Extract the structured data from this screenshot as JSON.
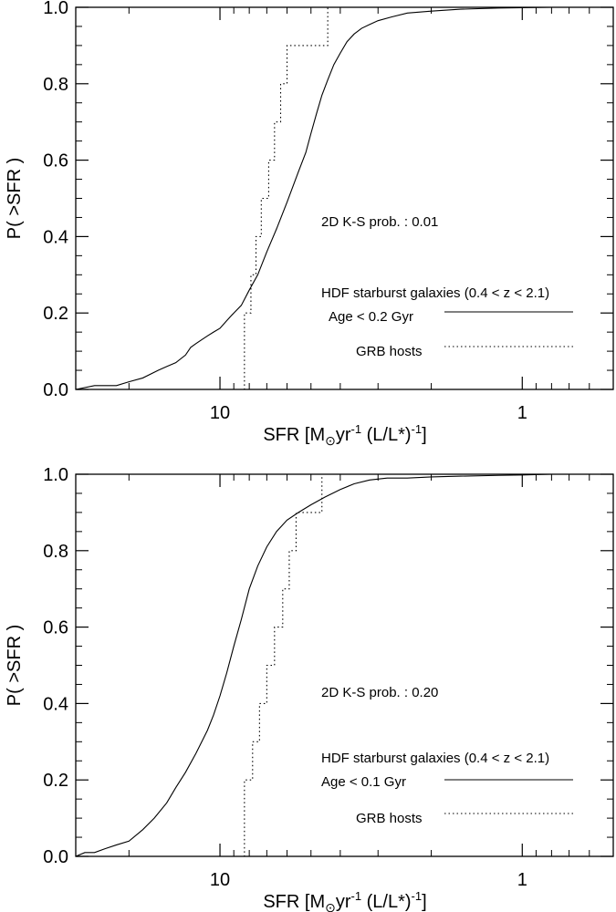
{
  "chart_data": [
    {
      "type": "line",
      "xscale": "log",
      "xaxis_reversed": true,
      "xlim": [
        30,
        0.5
      ],
      "ylim": [
        0,
        1.0
      ],
      "xlabel_main": "SFR [M",
      "xlabel_sub": "⊙",
      "xlabel_mid": "yr",
      "xlabel_sup1": "-1",
      "xlabel_tail": "  (L/L*)",
      "xlabel_sup2": "-1",
      "xlabel_close": "]",
      "ylabel": "P( >SFR )",
      "xtick_labels": [
        "10",
        "1"
      ],
      "xtick_values": [
        10,
        1
      ],
      "ytick_labels": [
        "0.0",
        "0.2",
        "0.4",
        "0.6",
        "0.8",
        "1.0"
      ],
      "ytick_values": [
        0.0,
        0.2,
        0.4,
        0.6,
        0.8,
        1.0
      ],
      "ks_text": "2D K-S prob. : 0.01",
      "legend_title": "HDF starburst galaxies (0.4 < z < 2.1)",
      "series": [
        {
          "name": "Age < 0.2 Gyr",
          "style": "solid",
          "x": [
            30,
            26,
            22,
            20,
            18,
            16,
            15,
            14,
            13,
            12.5,
            12,
            11.5,
            11,
            10.5,
            10,
            9.5,
            9,
            8.5,
            8,
            7.5,
            7,
            6.5,
            6,
            5.5,
            5.2,
            5.0,
            4.8,
            4.6,
            4.4,
            4.2,
            4.0,
            3.8,
            3.6,
            3.4,
            3.2,
            3.0,
            2.7,
            2.4,
            2.0,
            1.6,
            1.2,
            1.0,
            0.8,
            0.6,
            0.5
          ],
          "y": [
            0.0,
            0.01,
            0.01,
            0.02,
            0.03,
            0.05,
            0.06,
            0.07,
            0.09,
            0.11,
            0.12,
            0.13,
            0.14,
            0.15,
            0.16,
            0.18,
            0.2,
            0.22,
            0.26,
            0.3,
            0.36,
            0.42,
            0.49,
            0.57,
            0.62,
            0.67,
            0.72,
            0.77,
            0.81,
            0.85,
            0.88,
            0.91,
            0.93,
            0.945,
            0.955,
            0.965,
            0.975,
            0.985,
            0.99,
            0.995,
            0.998,
            0.999,
            1.0,
            1.0,
            1.0
          ]
        },
        {
          "name": "GRB hosts",
          "style": "dotted",
          "steps": [
            {
              "x": 8.3,
              "y": 0.2
            },
            {
              "x": 7.9,
              "y": 0.3
            },
            {
              "x": 7.6,
              "y": 0.4
            },
            {
              "x": 7.3,
              "y": 0.5
            },
            {
              "x": 6.9,
              "y": 0.6
            },
            {
              "x": 6.6,
              "y": 0.7
            },
            {
              "x": 6.3,
              "y": 0.8
            },
            {
              "x": 6.0,
              "y": 0.9
            },
            {
              "x": 4.4,
              "y": 1.0
            }
          ]
        }
      ]
    },
    {
      "type": "line",
      "xscale": "log",
      "xaxis_reversed": true,
      "xlim": [
        30,
        0.5
      ],
      "ylim": [
        0,
        1.0
      ],
      "xlabel_main": "SFR [M",
      "xlabel_sub": "⊙",
      "xlabel_mid": "yr",
      "xlabel_sup1": "-1",
      "xlabel_tail": "  (L/L*)",
      "xlabel_sup2": "-1",
      "xlabel_close": "]",
      "ylabel": "P( >SFR )",
      "xtick_labels": [
        "10",
        "1"
      ],
      "xtick_values": [
        10,
        1
      ],
      "ytick_labels": [
        "0.0",
        "0.2",
        "0.4",
        "0.6",
        "0.8",
        "1.0"
      ],
      "ytick_values": [
        0.0,
        0.2,
        0.4,
        0.6,
        0.8,
        1.0
      ],
      "ks_text": "2D K-S prob. : 0.20",
      "legend_title": "HDF starburst galaxies (0.4 < z < 2.1)",
      "series": [
        {
          "name": "Age < 0.1 Gyr",
          "style": "solid",
          "x": [
            30,
            28,
            26,
            24,
            22,
            20,
            18,
            16.5,
            15,
            14,
            13,
            12,
            11,
            10.5,
            10,
            9.5,
            9,
            8.5,
            8,
            7.5,
            7,
            6.5,
            6,
            5.5,
            5.0,
            4.5,
            4.0,
            3.6,
            3.2,
            2.8,
            2.4,
            2.0,
            1.6,
            1.2,
            1.0,
            0.8,
            0.6,
            0.5
          ],
          "y": [
            0.0,
            0.01,
            0.01,
            0.02,
            0.03,
            0.04,
            0.07,
            0.1,
            0.14,
            0.18,
            0.22,
            0.27,
            0.33,
            0.37,
            0.42,
            0.48,
            0.55,
            0.62,
            0.7,
            0.76,
            0.81,
            0.85,
            0.88,
            0.9,
            0.92,
            0.94,
            0.96,
            0.975,
            0.985,
            0.99,
            0.99,
            0.993,
            0.995,
            0.997,
            0.998,
            1.0,
            1.0,
            1.0
          ]
        },
        {
          "name": "GRB hosts",
          "style": "dotted",
          "steps": [
            {
              "x": 8.3,
              "y": 0.2
            },
            {
              "x": 7.8,
              "y": 0.3
            },
            {
              "x": 7.4,
              "y": 0.4
            },
            {
              "x": 7.0,
              "y": 0.5
            },
            {
              "x": 6.6,
              "y": 0.6
            },
            {
              "x": 6.2,
              "y": 0.7
            },
            {
              "x": 5.9,
              "y": 0.8
            },
            {
              "x": 5.6,
              "y": 0.9
            },
            {
              "x": 4.6,
              "y": 1.0
            }
          ]
        }
      ]
    }
  ]
}
